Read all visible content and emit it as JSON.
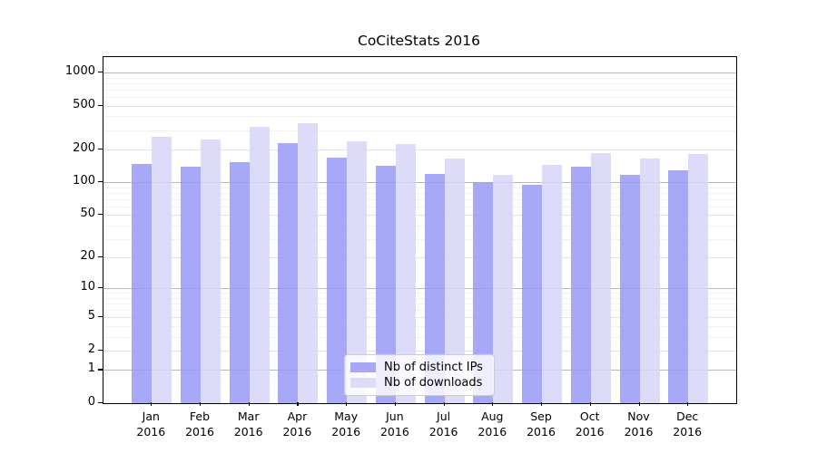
{
  "chart_data": {
    "type": "bar",
    "title": "CoCiteStats 2016",
    "xlabel": "",
    "ylabel": "",
    "yscale": "log1p",
    "ylim": [
      0,
      1380
    ],
    "grid": true,
    "legend_position": "bottom-center",
    "categories": [
      "Jan",
      "Feb",
      "Mar",
      "Apr",
      "May",
      "Jun",
      "Jul",
      "Aug",
      "Sep",
      "Oct",
      "Nov",
      "Dec"
    ],
    "year_label": "2016",
    "series": [
      {
        "name": "Nb of distinct IPs",
        "color": "#a8a8f2",
        "bar_color": "rgba(153,153,247,0.85)",
        "values": [
          147,
          140,
          154,
          226,
          168,
          141,
          119,
          101,
          95,
          138,
          118,
          128
        ]
      },
      {
        "name": "Nb of downloads",
        "color": "#dcdcf8",
        "bar_color": "rgba(214,214,248,0.85)",
        "values": [
          260,
          246,
          319,
          346,
          238,
          224,
          165,
          118,
          144,
          184,
          164,
          180
        ]
      }
    ],
    "yticks": [
      1000,
      500,
      200,
      100,
      50,
      20,
      10,
      5,
      2,
      1,
      0
    ],
    "gridlines": {
      "major": [
        1,
        10,
        100,
        1000
      ],
      "mid": [
        2,
        5,
        20,
        50,
        200,
        500
      ],
      "minor": [
        3,
        4,
        6,
        7,
        8,
        9,
        30,
        40,
        60,
        70,
        80,
        90,
        300,
        400,
        600,
        700,
        800,
        900
      ]
    }
  }
}
